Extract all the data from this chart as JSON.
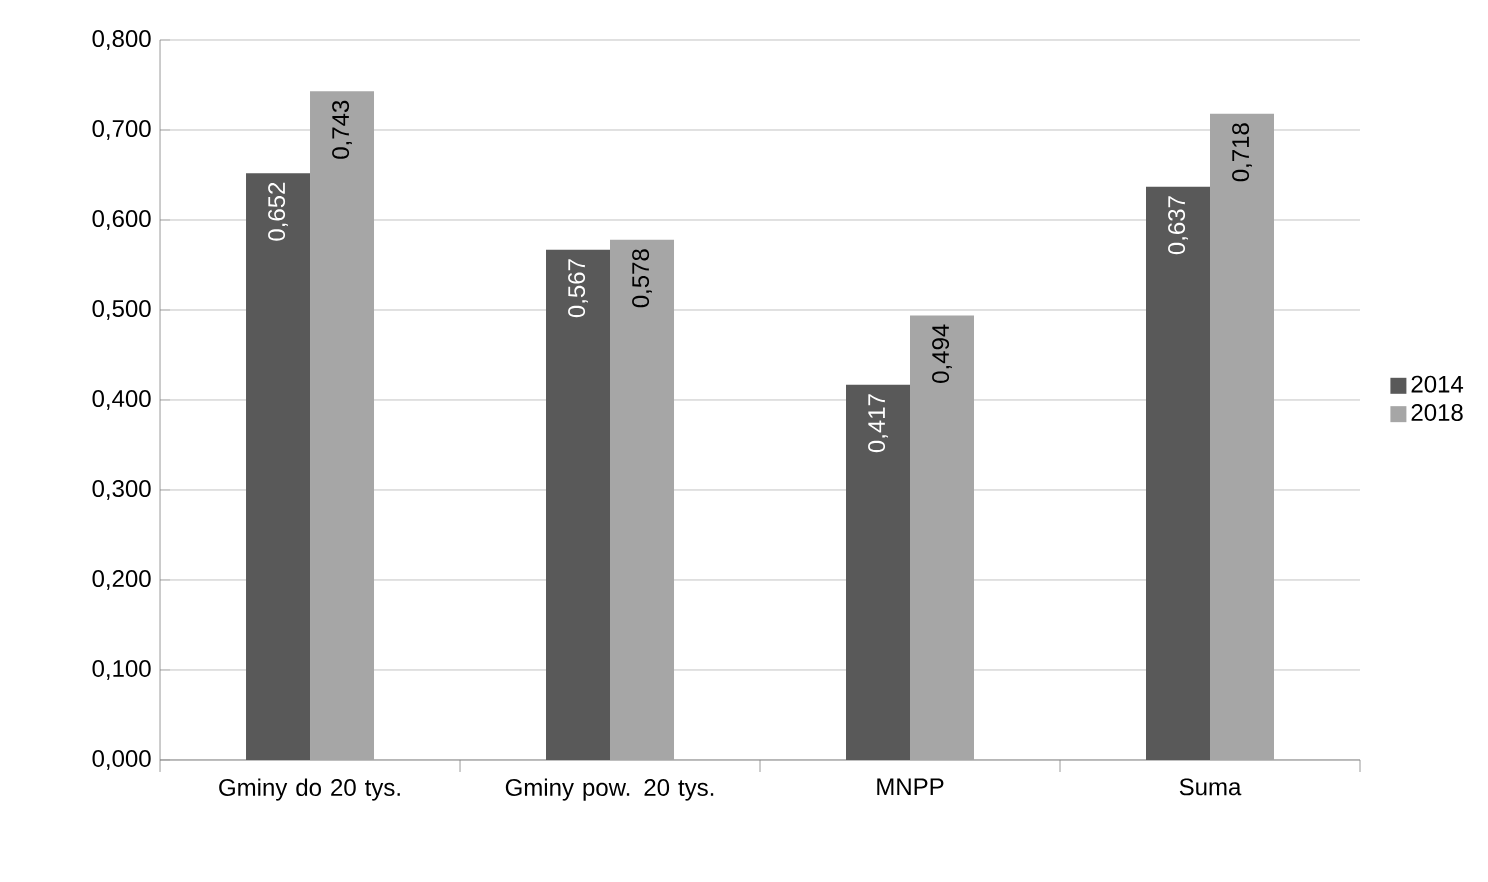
{
  "chart_data": {
    "type": "bar",
    "categories": [
      "Gminy do 20 tys.",
      "Gminy pow. 20 tys.",
      "MNPP",
      "Suma"
    ],
    "series": [
      {
        "name": "2014",
        "color": "#595959",
        "values": [
          0.652,
          0.567,
          0.417,
          0.637
        ],
        "value_labels": [
          "0,652",
          "0,567",
          "0,417",
          "0,637"
        ]
      },
      {
        "name": "2018",
        "color": "#a6a6a6",
        "values": [
          0.743,
          0.578,
          0.494,
          0.718
        ],
        "value_labels": [
          "0,743",
          "0,578",
          "0,494",
          "0,718"
        ]
      }
    ],
    "ylim": [
      0,
      0.8
    ],
    "yticks": [
      {
        "value": 0,
        "label": "0,000"
      },
      {
        "value": 0.1,
        "label": "0,100"
      },
      {
        "value": 0.2,
        "label": "0,200"
      },
      {
        "value": 0.3,
        "label": "0,300"
      },
      {
        "value": 0.4,
        "label": "0,400"
      },
      {
        "value": 0.5,
        "label": "0,500"
      },
      {
        "value": 0.6,
        "label": "0,600"
      },
      {
        "value": 0.7,
        "label": "0,700"
      },
      {
        "value": 0.8,
        "label": "0,800"
      }
    ],
    "grid": "y",
    "legend": "right"
  }
}
